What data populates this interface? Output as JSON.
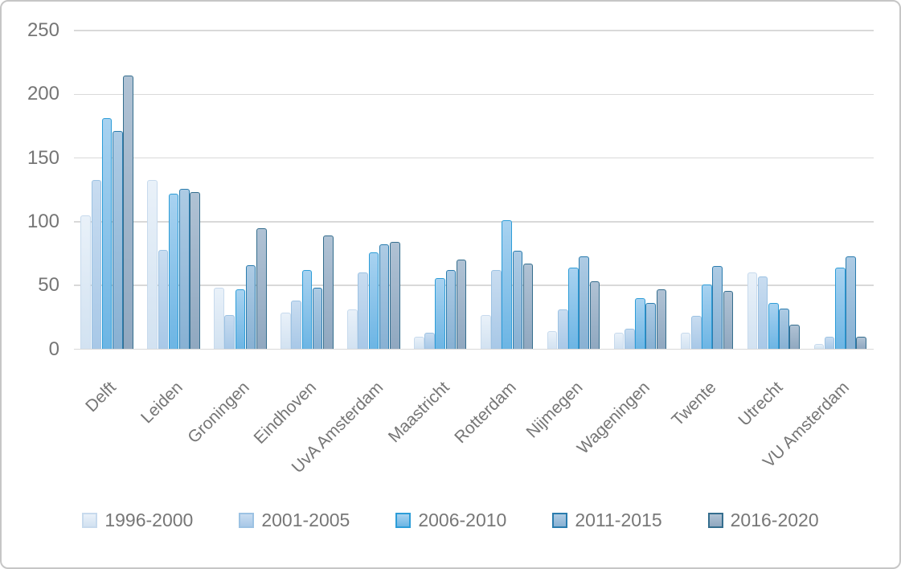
{
  "chart_data": {
    "type": "bar",
    "title": "",
    "categories": [
      "Delft",
      "Leiden",
      "Groningen",
      "Eindhoven",
      "UvA Amsterdam",
      "Maastricht",
      "Rotterdam",
      "Nijmegen",
      "Wageningen",
      "Twente",
      "Utrecht",
      "VU Amsterdam"
    ],
    "series": [
      {
        "name": "1996-2000",
        "color": {
          "fill_top": "#e9f1f9",
          "fill_bottom": "#d2e2f1",
          "border": "#c7daed"
        },
        "values": [
          105,
          133,
          48,
          29,
          31,
          10,
          27,
          14,
          13,
          13,
          60,
          4
        ]
      },
      {
        "name": "2001-2005",
        "color": {
          "fill_top": "#c8dcf0",
          "fill_bottom": "#a8c8e7",
          "border": "#9cc2e3"
        },
        "values": [
          133,
          78,
          27,
          38,
          60,
          13,
          62,
          31,
          16,
          26,
          57,
          10
        ]
      },
      {
        "name": "2006-2010",
        "color": {
          "fill_top": "#a8d2f0",
          "fill_bottom": "#6cb5e4",
          "border": "#2d9dd8"
        },
        "values": [
          181,
          122,
          47,
          62,
          76,
          56,
          101,
          64,
          40,
          51,
          36,
          64
        ]
      },
      {
        "name": "2011-2015",
        "color": {
          "fill_top": "#adcbe4",
          "fill_bottom": "#88b1d3",
          "border": "#2a7cae"
        },
        "values": [
          171,
          126,
          66,
          48,
          82,
          62,
          77,
          73,
          36,
          65,
          32,
          73
        ]
      },
      {
        "name": "2016-2020",
        "color": {
          "fill_top": "#b0c2d4",
          "fill_bottom": "#90a8c0",
          "border": "#356e8e"
        },
        "values": [
          215,
          123,
          95,
          89,
          84,
          70,
          67,
          53,
          47,
          46,
          19,
          10
        ]
      }
    ],
    "yticks": [
      0,
      50,
      100,
      150,
      200,
      250
    ],
    "ylim": [
      0,
      250
    ],
    "grid": true,
    "legend_position": "bottom"
  }
}
